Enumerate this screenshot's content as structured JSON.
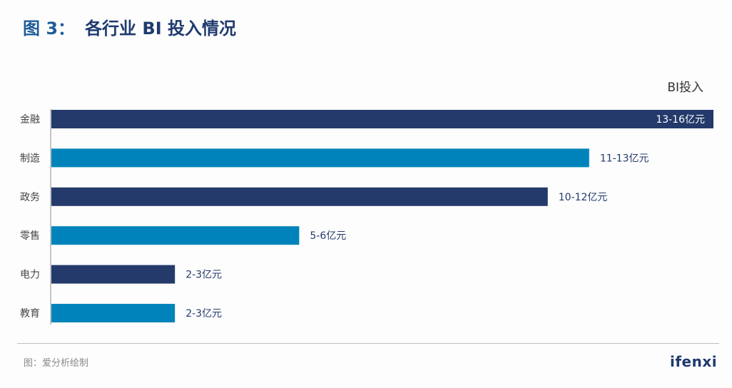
{
  "title": {
    "prefix": "图 3：",
    "text": "各行业 BI 投入情况"
  },
  "source": "图：爱分析绘制",
  "logo": "ifenxi",
  "colors": {
    "dark": "#243a6b",
    "light": "#0083bb",
    "title": "#1f3a6e"
  },
  "chart_data": {
    "type": "bar",
    "orientation": "horizontal",
    "categories": [
      "金融",
      "制造",
      "政务",
      "零售",
      "电力",
      "教育"
    ],
    "values": [
      16,
      13,
      12,
      6,
      3,
      3
    ],
    "data_labels": [
      "13-16亿元",
      "11-13亿元",
      "10-12亿元",
      "5-6亿元",
      "2-3亿元",
      "2-3亿元"
    ],
    "bar_colors": [
      "#243a6b",
      "#0083bb",
      "#243a6b",
      "#0083bb",
      "#243a6b",
      "#0083bb"
    ],
    "series_label": "BI投入",
    "xlim": [
      0,
      16
    ],
    "grid": false
  }
}
